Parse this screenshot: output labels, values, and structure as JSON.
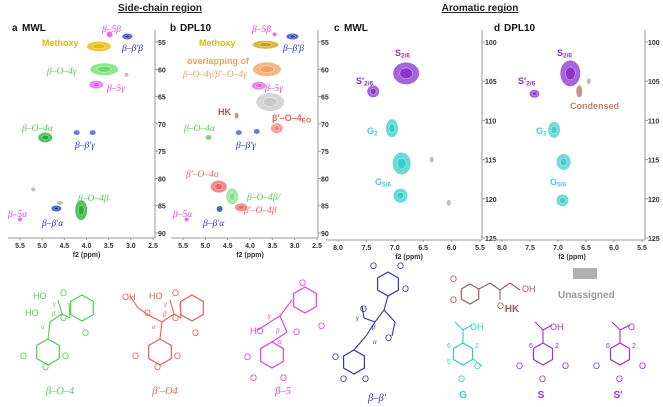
{
  "headers": {
    "side_chain": "Side-chain region",
    "aromatic": "Aromatic region"
  },
  "chart_data": [
    {
      "panel": "a",
      "title": "MWL",
      "type": "scatter",
      "xlabel": "f2 (ppm)",
      "xlim": [
        5.5,
        2.5
      ],
      "ylim": [
        55,
        90
      ],
      "y_reversed": true,
      "xticks": [
        "5.5",
        "5.0",
        "4.5",
        "4.0",
        "3.5",
        "3.0",
        "2.5"
      ],
      "yticks": [
        "55",
        "60",
        "65",
        "70",
        "75",
        "80",
        "85",
        "90"
      ],
      "peaks": [
        {
          "f2": 3.72,
          "f1": 55.8,
          "color": "#e6b800"
        },
        {
          "f2": 3.48,
          "f1": 53.6,
          "color": "#e040e0"
        },
        {
          "f2": 3.08,
          "f1": 54.0,
          "color": "#2233bb"
        },
        {
          "f2": 3.6,
          "f1": 60.0,
          "color": "#66dd66"
        },
        {
          "f2": 3.78,
          "f1": 62.8,
          "color": "#e060e0"
        },
        {
          "f2": 4.93,
          "f1": 72.5,
          "color": "#22aa33"
        },
        {
          "f2": 4.22,
          "f1": 71.6,
          "color": "#3355cc"
        },
        {
          "f2": 3.86,
          "f1": 71.6,
          "color": "#3355cc"
        },
        {
          "f2": 4.12,
          "f1": 85.8,
          "color": "#22aa33"
        },
        {
          "f2": 4.68,
          "f1": 85.5,
          "color": "#1133aa"
        },
        {
          "f2": 5.5,
          "f1": 87.5,
          "color": "#e040e0"
        },
        {
          "f2": 4.6,
          "f1": 84.5,
          "color": "#aaaaaa"
        },
        {
          "f2": 5.2,
          "f1": 82.0,
          "color": "#aaaaaa"
        },
        {
          "f2": 3.1,
          "f1": 61.0,
          "color": "#aaaaaa"
        }
      ],
      "annotations": [
        {
          "text": "Methoxy",
          "color": "#e6b800"
        },
        {
          "text": "β–5β",
          "color": "#e040e0"
        },
        {
          "text": "β–β′β",
          "color": "#2233bb"
        },
        {
          "text": "β–O–4γ",
          "color": "#55cc55"
        },
        {
          "text": "β–5γ",
          "color": "#e040e0"
        },
        {
          "text": "β–O–4α",
          "color": "#55cc55"
        },
        {
          "text": "β–β′γ",
          "color": "#2233bb"
        },
        {
          "text": "β–O–4β",
          "color": "#55cc55"
        },
        {
          "text": "β–5α",
          "color": "#e040e0"
        },
        {
          "text": "β–β′α",
          "color": "#2233bb"
        }
      ]
    },
    {
      "panel": "b",
      "title": "DPL10",
      "type": "scatter",
      "xlabel": "f2 (ppm)",
      "xlim": [
        5.5,
        2.5
      ],
      "ylim": [
        55,
        90
      ],
      "y_reversed": true,
      "xticks": [
        "5.5",
        "5.0",
        "4.5",
        "4.0",
        "3.5",
        "3.0",
        "2.5"
      ],
      "yticks": [
        "55",
        "60",
        "65",
        "70",
        "75",
        "80",
        "85",
        "90"
      ],
      "peaks": [
        {
          "f2": 3.65,
          "f1": 55.5,
          "color": "#c9a000"
        },
        {
          "f2": 3.45,
          "f1": 53.6,
          "color": "#e040e0"
        },
        {
          "f2": 3.05,
          "f1": 54.0,
          "color": "#2233bb"
        },
        {
          "f2": 3.62,
          "f1": 60.0,
          "color": "#f0a060"
        },
        {
          "f2": 3.8,
          "f1": 63.0,
          "color": "#e060e0"
        },
        {
          "f2": 3.55,
          "f1": 66.0,
          "color": "#c8c8c8"
        },
        {
          "f2": 4.3,
          "f1": 68.5,
          "color": "#b07070"
        },
        {
          "f2": 3.4,
          "f1": 70.8,
          "color": "#f08080"
        },
        {
          "f2": 4.93,
          "f1": 72.5,
          "color": "#55cc55"
        },
        {
          "f2": 4.25,
          "f1": 71.6,
          "color": "#3355cc"
        },
        {
          "f2": 3.85,
          "f1": 71.4,
          "color": "#3355cc"
        },
        {
          "f2": 4.7,
          "f1": 81.5,
          "color": "#f06060"
        },
        {
          "f2": 4.4,
          "f1": 83.3,
          "color": "#88dd88"
        },
        {
          "f2": 4.2,
          "f1": 85.3,
          "color": "#f06060"
        },
        {
          "f2": 4.68,
          "f1": 85.6,
          "color": "#1133aa"
        },
        {
          "f2": 5.42,
          "f1": 87.5,
          "color": "#e040e0"
        }
      ],
      "annotations": [
        {
          "text": "Methoxy",
          "color": "#e6b800"
        },
        {
          "text": "β–5β",
          "color": "#e040e0"
        },
        {
          "text": "β–β′β",
          "color": "#2233bb"
        },
        {
          "text": "overlapping of",
          "color": "#f0a060"
        },
        {
          "text": "β–O–4γ/β′–O–4γ",
          "color": "#f0a060"
        },
        {
          "text": "β–5γ",
          "color": "#e040e0"
        },
        {
          "text": "HK",
          "color": "#a05a5a"
        },
        {
          "text": "β′–O–4",
          "sub": "EO",
          "color": "#e8625a"
        },
        {
          "text": "β–O–4α",
          "color": "#55cc55"
        },
        {
          "text": "β–β′γ",
          "color": "#2233bb"
        },
        {
          "text": "β′–O–4α",
          "color": "#e8625a"
        },
        {
          "text": "β–O–4β/",
          "color": "#55cc55"
        },
        {
          "text": "β′–O–4β",
          "color": "#e8625a"
        },
        {
          "text": "β–5α",
          "color": "#e040e0"
        },
        {
          "text": "β–β′α",
          "color": "#2233bb"
        }
      ]
    },
    {
      "panel": "c",
      "title": "MWL",
      "type": "scatter",
      "xlabel": "f2 (ppm)",
      "xlim": [
        8.0,
        5.5
      ],
      "ylim": [
        100,
        125
      ],
      "y_reversed": true,
      "xticks": [
        "8.0",
        "7.5",
        "7.0",
        "6.5",
        "6.0",
        "5.5"
      ],
      "yticks": [
        "100",
        "105",
        "110",
        "115",
        "120",
        "125"
      ],
      "peaks": [
        {
          "f2": 6.8,
          "f1": 104.0,
          "color": "#8833cc"
        },
        {
          "f2": 7.38,
          "f1": 106.3,
          "color": "#8833cc"
        },
        {
          "f2": 7.05,
          "f1": 111.0,
          "color": "#33cccc"
        },
        {
          "f2": 6.88,
          "f1": 115.5,
          "color": "#33cccc"
        },
        {
          "f2": 6.9,
          "f1": 119.6,
          "color": "#33cccc"
        },
        {
          "f2": 6.35,
          "f1": 115.0,
          "color": "#aaaaaa"
        },
        {
          "f2": 6.05,
          "f1": 120.5,
          "color": "#aaaaaa"
        }
      ],
      "annotations": [
        {
          "text": "S",
          "sub": "2/6",
          "color": "#8833cc"
        },
        {
          "text": "S′",
          "sub": "2/6",
          "color": "#8833cc"
        },
        {
          "text": "G",
          "sub": "2",
          "color": "#44cccc"
        },
        {
          "text": "G",
          "sub": "5/6",
          "color": "#44cccc"
        }
      ]
    },
    {
      "panel": "d",
      "title": "DPL10",
      "type": "scatter",
      "xlabel": "f2 (ppm)",
      "xlim": [
        8.0,
        5.5
      ],
      "ylim": [
        100,
        125
      ],
      "y_reversed": true,
      "xticks": [
        "8.0",
        "7.5",
        "7.0",
        "6.5",
        "6.0",
        "5.5"
      ],
      "yticks": [
        "100",
        "105",
        "110",
        "115",
        "120",
        "125"
      ],
      "peaks": [
        {
          "f2": 6.78,
          "f1": 104.0,
          "color": "#8833cc"
        },
        {
          "f2": 7.42,
          "f1": 106.6,
          "color": "#8833cc"
        },
        {
          "f2": 6.62,
          "f1": 106.3,
          "color": "#b07060"
        },
        {
          "f2": 7.07,
          "f1": 111.2,
          "color": "#44cccc"
        },
        {
          "f2": 6.9,
          "f1": 115.3,
          "color": "#44cccc"
        },
        {
          "f2": 6.92,
          "f1": 120.2,
          "color": "#44cccc"
        },
        {
          "f2": 6.45,
          "f1": 105.0,
          "color": "#aaaaaa"
        }
      ],
      "annotations": [
        {
          "text": "S",
          "sub": "2/6",
          "color": "#8833cc"
        },
        {
          "text": "S′",
          "sub": "2/6",
          "color": "#8833cc"
        },
        {
          "text": "Condensed",
          "color": "#c08070"
        },
        {
          "text": "G",
          "sub": "2",
          "color": "#44cccc"
        },
        {
          "text": "G",
          "sub": "5/6",
          "color": "#44cccc"
        }
      ]
    }
  ],
  "structures": [
    {
      "name": "β–O–4",
      "color": "#55cc55",
      "atoms": [
        "HO",
        "HO",
        "O",
        "O",
        "O",
        "O",
        "O",
        "O",
        "α",
        "β",
        "γ"
      ]
    },
    {
      "name": "β′–O4",
      "color": "#e8625a",
      "atoms": [
        "OH",
        "HO",
        "O",
        "O",
        "O",
        "O",
        "O",
        "O",
        "O",
        "α",
        "β",
        "γ"
      ]
    },
    {
      "name": "β–5",
      "color": "#e040e0",
      "atoms": [
        "O",
        "O",
        "HO",
        "O",
        "O",
        "O",
        "O",
        "α",
        "β",
        "γ"
      ]
    },
    {
      "name": "β–β′",
      "color": "#3333bb",
      "atoms": [
        "O",
        "O",
        "O",
        "O",
        "O",
        "O",
        "O",
        "O",
        "α",
        "β",
        "γ"
      ]
    },
    {
      "name": "HK",
      "color": "#a05a5a",
      "atoms": [
        "O",
        "O",
        "O",
        "OH"
      ]
    },
    {
      "name": "G",
      "color": "#33cccc",
      "atoms": [
        "OH",
        "O",
        "O",
        "6",
        "5",
        "2"
      ]
    },
    {
      "name": "S",
      "color": "#9933cc",
      "atoms": [
        "OH",
        "O",
        "O",
        "O",
        "6",
        "2"
      ]
    },
    {
      "name": "S'",
      "color": "#9933cc",
      "atoms": [
        "O",
        "O",
        "O",
        "O",
        "6",
        "2"
      ]
    }
  ],
  "legend": {
    "unassigned_label": "Unassigned",
    "unassigned_color": "#b0b0b0"
  }
}
